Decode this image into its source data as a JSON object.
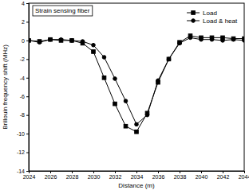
{
  "chart_data": {
    "type": "line",
    "annotation": "Strain sensing fiber",
    "x_label": "Distance (m)",
    "y_label": "Brillouin frequency shift (MHz)",
    "x": [
      2024,
      2025,
      2026,
      2027,
      2028,
      2029,
      2030,
      2031,
      2032,
      2033,
      2034,
      2035,
      2036,
      2037,
      2038,
      2039,
      2040,
      2041,
      2042,
      2043,
      2044
    ],
    "series": [
      {
        "name": "Load",
        "color": "#000000",
        "marker": "square",
        "line_style": "solid",
        "values": [
          0,
          -0.1,
          0.1,
          0,
          0,
          -0.3,
          -1.2,
          -4,
          -6.8,
          -9.2,
          -9.8,
          -7.8,
          -4.5,
          -2,
          -0.2,
          0.5,
          0.3,
          0.3,
          0.3,
          0.2,
          0.2
        ]
      },
      {
        "name": "Load & heat",
        "color": "#000000",
        "marker": "circle",
        "line_style": "solid",
        "values": [
          0,
          -0.2,
          0.1,
          0.1,
          0,
          -0.1,
          -0.5,
          -1.8,
          -4.1,
          -6.5,
          -9,
          -8,
          -4.3,
          -2,
          -0.3,
          0.3,
          0.1,
          0.1,
          0,
          0.1,
          0
        ]
      }
    ],
    "xlim": [
      2024,
      2044
    ],
    "xticks": [
      2024,
      2026,
      2028,
      2030,
      2032,
      2034,
      2036,
      2038,
      2040,
      2042,
      2044
    ],
    "ylim": [
      -14,
      4
    ],
    "yticks": [
      -14,
      -12,
      -10,
      -8,
      -6,
      -4,
      -2,
      0,
      2,
      4
    ],
    "legend": "upper right",
    "grid": false
  }
}
